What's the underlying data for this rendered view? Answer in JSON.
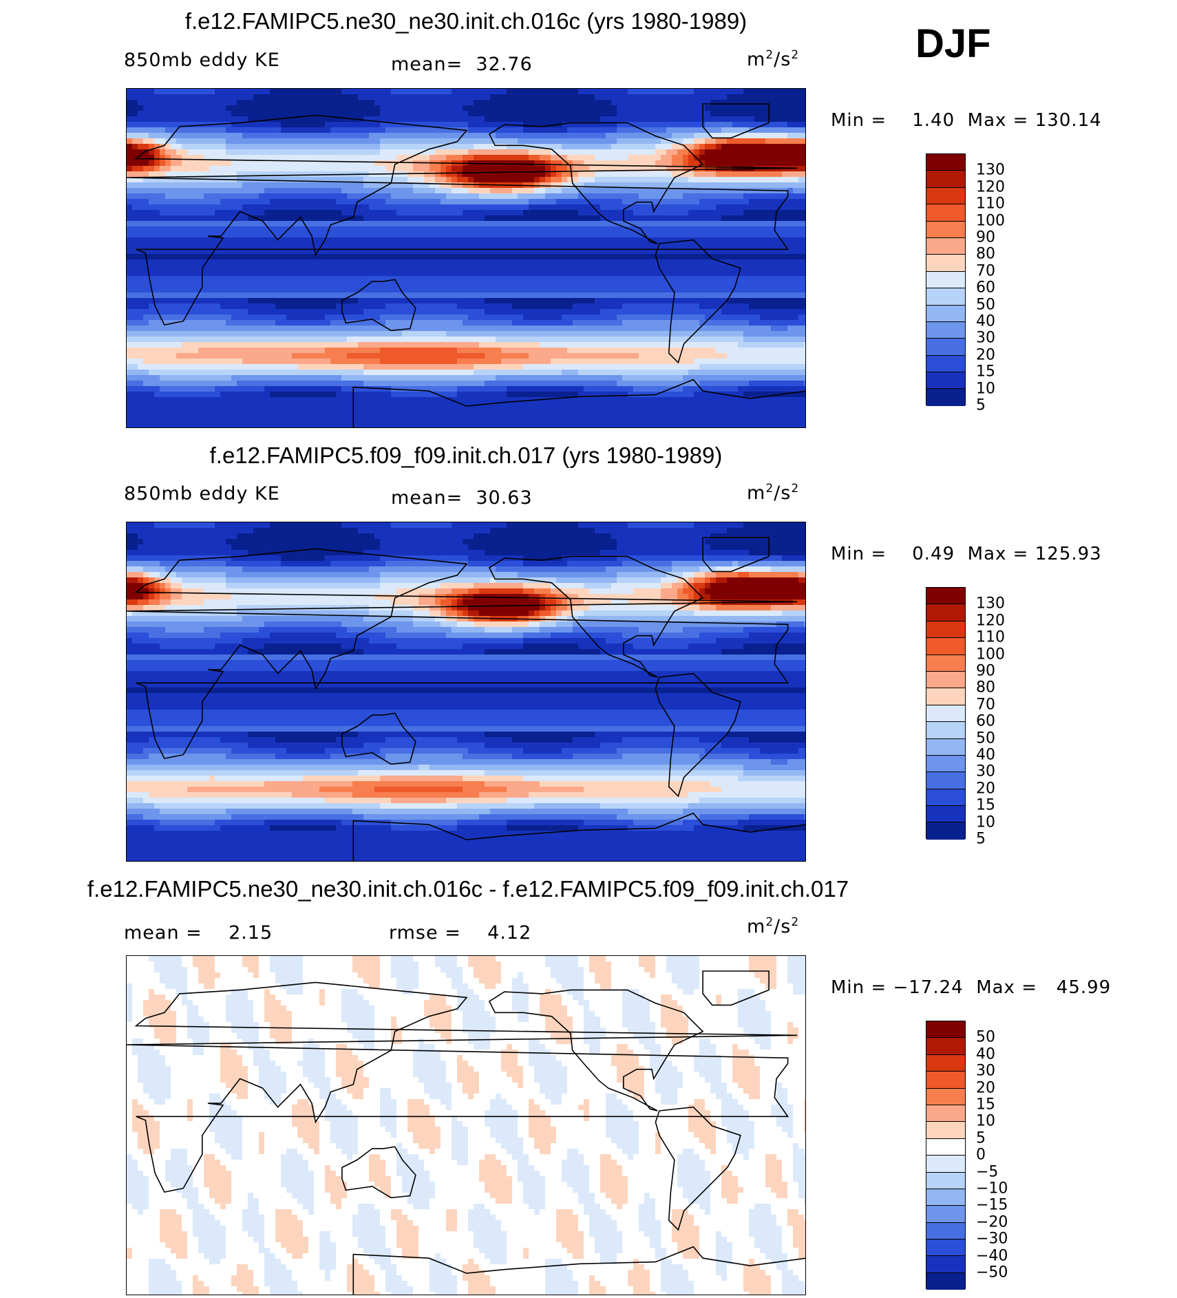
{
  "season": "DJF",
  "panels": [
    {
      "title": "f.e12.FAMIPC5.ne30_ne30.init.ch.016c (yrs 1980-1989)",
      "left_label": "850mb eddy KE",
      "mid_label": "mean=  32.76",
      "unit_base_1": "m",
      "unit_exp_1": "2",
      "unit_sep": "/s",
      "unit_exp_2": "2",
      "minmax": "Min =    1.40  Max = 130.14",
      "colorbar": {
        "colors": [
          "#7f0000",
          "#b01a05",
          "#d93810",
          "#ef5a2a",
          "#f77f4f",
          "#fba98a",
          "#fdd5be",
          "#dbe9fb",
          "#b7d3f8",
          "#93b7f3",
          "#6d95ec",
          "#4870e3",
          "#2b4fd8",
          "#1733be",
          "#09208f"
        ],
        "labels": [
          "130",
          "120",
          "110",
          "100",
          "90",
          "80",
          "70",
          "60",
          "50",
          "40",
          "30",
          "20",
          "15",
          "10",
          "5"
        ]
      },
      "fields": [
        {
          "lon": -160,
          "lat": 45,
          "amp": 118,
          "slon": 22,
          "slat": 7
        },
        {
          "lon": -35,
          "lat": 55,
          "amp": 112,
          "slon": 20,
          "slat": 7
        },
        {
          "lon": 0,
          "lat": 55,
          "amp": 90,
          "slon": 14,
          "slat": 6
        },
        {
          "lon": 150,
          "lat": -52,
          "amp": 38,
          "slon": 70,
          "slat": 6
        }
      ]
    },
    {
      "title": "f.e12.FAMIPC5.f09_f09.init.ch.017 (yrs 1980-1989)",
      "left_label": "850mb eddy KE",
      "mid_label": "mean=  30.63",
      "unit_base_1": "m",
      "unit_exp_1": "2",
      "unit_sep": "/s",
      "unit_exp_2": "2",
      "minmax": "Min =    0.49  Max = 125.93",
      "colorbar": {
        "colors": [
          "#7f0000",
          "#b01a05",
          "#d93810",
          "#ef5a2a",
          "#f77f4f",
          "#fba98a",
          "#fdd5be",
          "#dbe9fb",
          "#b7d3f8",
          "#93b7f3",
          "#6d95ec",
          "#4870e3",
          "#2b4fd8",
          "#1733be",
          "#09208f"
        ],
        "labels": [
          "130",
          "120",
          "110",
          "100",
          "90",
          "80",
          "70",
          "60",
          "50",
          "40",
          "30",
          "20",
          "15",
          "10",
          "5"
        ]
      },
      "fields": [
        {
          "lon": -160,
          "lat": 45,
          "amp": 112,
          "slon": 21,
          "slat": 7
        },
        {
          "lon": -35,
          "lat": 55,
          "amp": 108,
          "slon": 19,
          "slat": 7
        },
        {
          "lon": 0,
          "lat": 55,
          "amp": 85,
          "slon": 14,
          "slat": 6
        },
        {
          "lon": 150,
          "lat": -52,
          "amp": 32,
          "slon": 70,
          "slat": 6
        }
      ]
    },
    {
      "title": "f.e12.FAMIPC5.ne30_ne30.init.ch.016c - f.e12.FAMIPC5.f09_f09.init.ch.017",
      "left_label": "mean =    2.15",
      "mid_label": "rmse =    4.12",
      "unit_base_1": "m",
      "unit_exp_1": "2",
      "unit_sep": "/s",
      "unit_exp_2": "2",
      "minmax": "Min = −17.24  Max =   45.99",
      "colorbar": {
        "colors": [
          "#7f0000",
          "#b01a05",
          "#d93810",
          "#ef5a2a",
          "#f77f4f",
          "#fba98a",
          "#fdd5be",
          "#ffffff",
          "#dbe9fb",
          "#b7d3f8",
          "#93b7f3",
          "#6d95ec",
          "#4870e3",
          "#2b4fd8",
          "#1733be",
          "#09208f"
        ],
        "labels": [
          "50",
          "40",
          "30",
          "20",
          "15",
          "10",
          "5",
          "0",
          "−5",
          "−10",
          "−15",
          "−20",
          "−30",
          "−40",
          "−50"
        ]
      }
    }
  ]
}
